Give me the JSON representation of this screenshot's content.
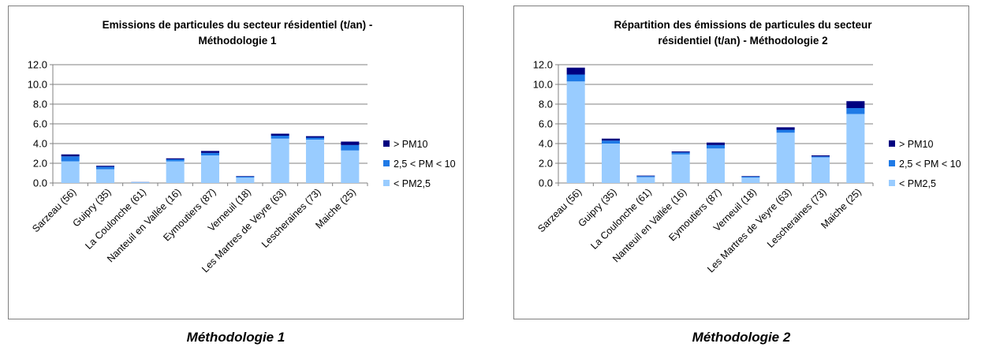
{
  "colors": {
    "pm25": "#99ccff",
    "pm25_10": "#1f7ae6",
    "pm10": "#000080",
    "axis": "#808080",
    "grid": "#808080"
  },
  "legend": [
    {
      "label": "> PM10",
      "color": "#000080"
    },
    {
      "label": "2,5 < PM < 10",
      "color": "#1f7ae6"
    },
    {
      "label": "< PM2,5",
      "color": "#99ccff"
    }
  ],
  "chart_data": [
    {
      "type": "bar",
      "stacked": true,
      "title_lines": [
        "Emissions de particules du secteur résidentiel (t/an) -",
        "Méthodologie 1"
      ],
      "caption": "Méthodologie 1",
      "categories": [
        "Sarzeau (56)",
        "Guipry (35)",
        "La Coulonche (61)",
        "Nanteuil en Vallée (16)",
        "Eymoutiers (87)",
        "Verneuil (18)",
        "Les Martres de Veyre (63)",
        "Lescheraines (73)",
        "Maiche (25)"
      ],
      "series": [
        {
          "name": "< PM2,5",
          "values": [
            2.2,
            1.4,
            0.07,
            2.2,
            2.8,
            0.55,
            4.5,
            4.4,
            3.3
          ]
        },
        {
          "name": "2,5 < PM < 10",
          "values": [
            0.5,
            0.25,
            0.02,
            0.2,
            0.25,
            0.1,
            0.3,
            0.2,
            0.55
          ]
        },
        {
          "name": "> PM10",
          "values": [
            0.2,
            0.1,
            0.01,
            0.1,
            0.2,
            0.05,
            0.2,
            0.15,
            0.35
          ]
        }
      ],
      "y_ticks": [
        "0.0",
        "2.0",
        "4.0",
        "6.0",
        "8.0",
        "10.0",
        "12.0"
      ],
      "ylim": [
        0,
        12
      ],
      "grid": true,
      "legend_position": "right"
    },
    {
      "type": "bar",
      "stacked": true,
      "title_lines": [
        "Répartition des émissions de particules du secteur",
        "résidentiel (t/an) - Méthodologie 2"
      ],
      "caption": "Méthodologie 2",
      "categories": [
        "Sarzeau (56)",
        "Guipry (35)",
        "La Coulonche (61)",
        "Nanteuil en Vallée (16)",
        "Eymoutiers (87)",
        "Verneuil (18)",
        "Les Martres de Veyre (63)",
        "Lescheraines (73)",
        "Maiche (25)"
      ],
      "series": [
        {
          "name": "< PM2,5",
          "values": [
            10.3,
            4.0,
            0.6,
            2.9,
            3.5,
            0.55,
            5.1,
            2.6,
            7.0
          ]
        },
        {
          "name": "2,5 < PM < 10",
          "values": [
            0.7,
            0.3,
            0.1,
            0.2,
            0.35,
            0.1,
            0.3,
            0.1,
            0.6
          ]
        },
        {
          "name": "> PM10",
          "values": [
            0.7,
            0.2,
            0.05,
            0.1,
            0.25,
            0.05,
            0.25,
            0.1,
            0.7
          ]
        }
      ],
      "y_ticks": [
        "0.0",
        "2.0",
        "4.0",
        "6.0",
        "8.0",
        "10.0",
        "12.0"
      ],
      "ylim": [
        0,
        12
      ],
      "grid": true,
      "legend_position": "right"
    }
  ]
}
